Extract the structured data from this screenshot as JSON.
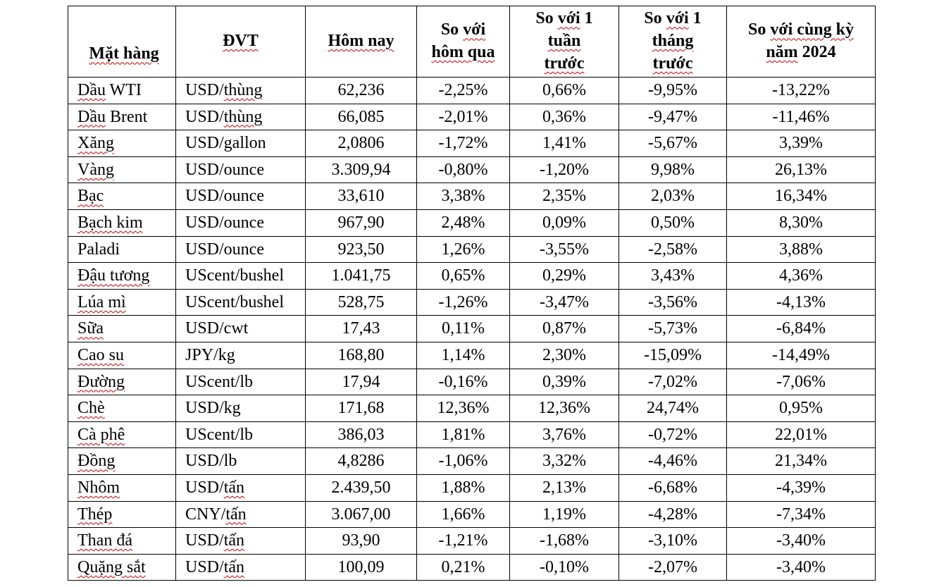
{
  "page": {
    "background": "#ffffff",
    "border_color": "#000000",
    "squiggle_color": "#c00000"
  },
  "table": {
    "headers": [
      {
        "id": "mat-hang",
        "lines": [
          [
            {
              "t": "Mặt hàng",
              "sq": true
            }
          ]
        ]
      },
      {
        "id": "dvt",
        "lines": [
          [
            {
              "t": "ĐVT",
              "sq": true
            }
          ]
        ]
      },
      {
        "id": "hom-nay",
        "lines": [
          [
            {
              "t": "Hôm nay",
              "sq": true
            }
          ]
        ]
      },
      {
        "id": "so-voi-hom-qua",
        "lines": [
          [
            {
              "t": "So ",
              "sq": false
            },
            {
              "t": "với",
              "sq": true
            }
          ],
          [
            {
              "t": "hôm qua",
              "sq": true
            }
          ]
        ]
      },
      {
        "id": "so-voi-1-tuan-truoc",
        "lines": [
          [
            {
              "t": "So ",
              "sq": false
            },
            {
              "t": "với",
              "sq": true
            },
            {
              "t": " 1",
              "sq": false
            }
          ],
          [
            {
              "t": "tuần",
              "sq": true
            }
          ],
          [
            {
              "t": "trước",
              "sq": true
            }
          ]
        ]
      },
      {
        "id": "so-voi-1-thang-truoc",
        "lines": [
          [
            {
              "t": "So ",
              "sq": false
            },
            {
              "t": "với",
              "sq": true
            },
            {
              "t": " 1",
              "sq": false
            }
          ],
          [
            {
              "t": "tháng",
              "sq": true
            }
          ],
          [
            {
              "t": "trước",
              "sq": true
            }
          ]
        ]
      },
      {
        "id": "so-voi-cung-ky-2024",
        "lines": [
          [
            {
              "t": "So ",
              "sq": false
            },
            {
              "t": "với cùng kỳ",
              "sq": true
            }
          ],
          [
            {
              "t": "năm",
              "sq": true
            },
            {
              "t": " 2024",
              "sq": false
            }
          ]
        ]
      }
    ],
    "rows": [
      {
        "name": [
          {
            "t": "Dầu",
            "sq": true
          },
          {
            "t": " WTI",
            "sq": false
          }
        ],
        "unit": [
          {
            "t": "USD/",
            "sq": false
          },
          {
            "t": "thùng",
            "sq": true
          }
        ],
        "today": "62,236",
        "vs_yesterday": "-2,25%",
        "vs_week": "0,66%",
        "vs_month": "-9,95%",
        "vs_year": "-13,22%"
      },
      {
        "name": [
          {
            "t": "Dầu",
            "sq": true
          },
          {
            "t": " Brent",
            "sq": false
          }
        ],
        "unit": [
          {
            "t": "USD/",
            "sq": false
          },
          {
            "t": "thùng",
            "sq": true
          }
        ],
        "today": "66,085",
        "vs_yesterday": "-2,01%",
        "vs_week": "0,36%",
        "vs_month": "-9,47%",
        "vs_year": "-11,46%"
      },
      {
        "name": [
          {
            "t": "Xăng",
            "sq": true
          }
        ],
        "unit": [
          {
            "t": "USD/gallon",
            "sq": false
          }
        ],
        "today": "2,0806",
        "vs_yesterday": "-1,72%",
        "vs_week": "1,41%",
        "vs_month": "-5,67%",
        "vs_year": "3,39%"
      },
      {
        "name": [
          {
            "t": "Vàng",
            "sq": true
          }
        ],
        "unit": [
          {
            "t": "USD/ounce",
            "sq": false
          }
        ],
        "today": "3.309,94",
        "vs_yesterday": "-0,80%",
        "vs_week": "-1,20%",
        "vs_month": "9,98%",
        "vs_year": "26,13%"
      },
      {
        "name": [
          {
            "t": "Bạc",
            "sq": true
          }
        ],
        "unit": [
          {
            "t": "USD/ounce",
            "sq": false
          }
        ],
        "today": "33,610",
        "vs_yesterday": "3,38%",
        "vs_week": "2,35%",
        "vs_month": "2,03%",
        "vs_year": "16,34%"
      },
      {
        "name": [
          {
            "t": "Bạch kim",
            "sq": true
          }
        ],
        "unit": [
          {
            "t": "USD/ounce",
            "sq": false
          }
        ],
        "today": "967,90",
        "vs_yesterday": "2,48%",
        "vs_week": "0,09%",
        "vs_month": "0,50%",
        "vs_year": "8,30%"
      },
      {
        "name": [
          {
            "t": "Paladi",
            "sq": false
          }
        ],
        "unit": [
          {
            "t": "USD/ounce",
            "sq": false
          }
        ],
        "today": "923,50",
        "vs_yesterday": "1,26%",
        "vs_week": "-3,55%",
        "vs_month": "-2,58%",
        "vs_year": "3,88%"
      },
      {
        "name": [
          {
            "t": "Đậu tương",
            "sq": true
          }
        ],
        "unit": [
          {
            "t": "UScent/bushel",
            "sq": false
          }
        ],
        "today": "1.041,75",
        "vs_yesterday": "0,65%",
        "vs_week": "0,29%",
        "vs_month": "3,43%",
        "vs_year": "4,36%"
      },
      {
        "name": [
          {
            "t": "Lúa mì",
            "sq": true
          }
        ],
        "unit": [
          {
            "t": "UScent/bushel",
            "sq": false
          }
        ],
        "today": "528,75",
        "vs_yesterday": "-1,26%",
        "vs_week": "-3,47%",
        "vs_month": "-3,56%",
        "vs_year": "-4,13%"
      },
      {
        "name": [
          {
            "t": "Sữa",
            "sq": true
          }
        ],
        "unit": [
          {
            "t": "USD/cwt",
            "sq": false
          }
        ],
        "today": "17,43",
        "vs_yesterday": "0,11%",
        "vs_week": "0,87%",
        "vs_month": "-5,73%",
        "vs_year": "-6,84%"
      },
      {
        "name": [
          {
            "t": "Cao su",
            "sq": true
          }
        ],
        "unit": [
          {
            "t": "JPY/kg",
            "sq": false
          }
        ],
        "today": "168,80",
        "vs_yesterday": "1,14%",
        "vs_week": "2,30%",
        "vs_month": "-15,09%",
        "vs_year": "-14,49%"
      },
      {
        "name": [
          {
            "t": "Đường",
            "sq": true
          }
        ],
        "unit": [
          {
            "t": "UScent/lb",
            "sq": false
          }
        ],
        "today": "17,94",
        "vs_yesterday": "-0,16%",
        "vs_week": "0,39%",
        "vs_month": "-7,02%",
        "vs_year": "-7,06%"
      },
      {
        "name": [
          {
            "t": "Chè",
            "sq": true
          }
        ],
        "unit": [
          {
            "t": "USD/kg",
            "sq": false
          }
        ],
        "today": "171,68",
        "vs_yesterday": "12,36%",
        "vs_week": "12,36%",
        "vs_month": "24,74%",
        "vs_year": "0,95%"
      },
      {
        "name": [
          {
            "t": "Cà phê",
            "sq": true
          }
        ],
        "unit": [
          {
            "t": "UScent/lb",
            "sq": false
          }
        ],
        "today": "386,03",
        "vs_yesterday": "1,81%",
        "vs_week": "3,76%",
        "vs_month": "-0,72%",
        "vs_year": "22,01%"
      },
      {
        "name": [
          {
            "t": "Đồng",
            "sq": true
          }
        ],
        "unit": [
          {
            "t": "USD/lb",
            "sq": false
          }
        ],
        "today": "4,8286",
        "vs_yesterday": "-1,06%",
        "vs_week": "3,32%",
        "vs_month": "-4,46%",
        "vs_year": "21,34%"
      },
      {
        "name": [
          {
            "t": "Nhôm",
            "sq": true
          }
        ],
        "unit": [
          {
            "t": "USD/",
            "sq": false
          },
          {
            "t": "tấn",
            "sq": true
          }
        ],
        "today": "2.439,50",
        "vs_yesterday": "1,88%",
        "vs_week": "2,13%",
        "vs_month": "-6,68%",
        "vs_year": "-4,39%"
      },
      {
        "name": [
          {
            "t": "Thép",
            "sq": true
          }
        ],
        "unit": [
          {
            "t": "CNY/",
            "sq": false
          },
          {
            "t": "tấn",
            "sq": true
          }
        ],
        "today": "3.067,00",
        "vs_yesterday": "1,66%",
        "vs_week": "1,19%",
        "vs_month": "-4,28%",
        "vs_year": "-7,34%"
      },
      {
        "name": [
          {
            "t": "Than đá",
            "sq": true
          }
        ],
        "unit": [
          {
            "t": "USD/",
            "sq": false
          },
          {
            "t": "tấn",
            "sq": true
          }
        ],
        "today": "93,90",
        "vs_yesterday": "-1,21%",
        "vs_week": "-1,68%",
        "vs_month": "-3,10%",
        "vs_year": "-3,40%"
      },
      {
        "name": [
          {
            "t": "Quặng sắt",
            "sq": true
          }
        ],
        "unit": [
          {
            "t": "USD/",
            "sq": false
          },
          {
            "t": "tấn",
            "sq": true
          }
        ],
        "today": "100,09",
        "vs_yesterday": "0,21%",
        "vs_week": "-0,10%",
        "vs_month": "-2,07%",
        "vs_year": "-3,40%"
      }
    ],
    "column_keys": [
      "today",
      "vs_yesterday",
      "vs_week",
      "vs_month",
      "vs_year"
    ]
  }
}
